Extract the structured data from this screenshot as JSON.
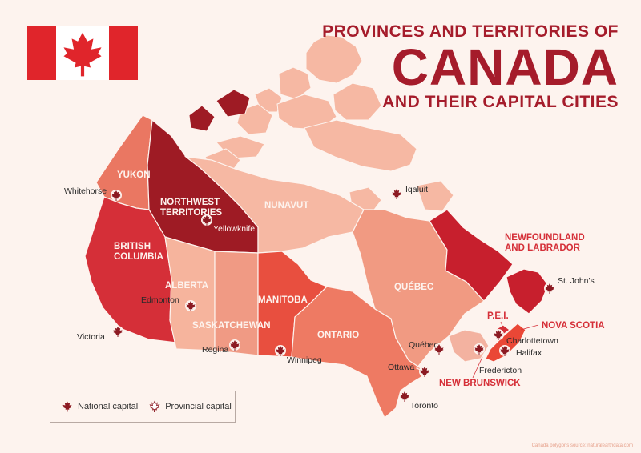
{
  "title": {
    "line1": "PROVINCES AND TERRITORIES OF",
    "line2": "CANADA",
    "line3": "AND THEIR CAPITAL CITIES"
  },
  "regions": [
    {
      "id": "yukon",
      "label_lines": [
        "YUKON"
      ],
      "color": "#ea7762"
    },
    {
      "id": "nwt",
      "label_lines": [
        "NORTHWEST",
        "TERRITORIES"
      ],
      "color": "#9e1b24"
    },
    {
      "id": "nunavut",
      "label_lines": [
        "NUNAVUT"
      ],
      "color": "#f6b8a3"
    },
    {
      "id": "bc",
      "label_lines": [
        "BRITISH",
        "COLUMBIA"
      ],
      "color": "#d52f38"
    },
    {
      "id": "alberta",
      "label_lines": [
        "ALBERTA"
      ],
      "color": "#f6b49d"
    },
    {
      "id": "saskatchewan",
      "label_lines": [
        "SASKATCHEWAN"
      ],
      "color": "#f09a84"
    },
    {
      "id": "manitoba",
      "label_lines": [
        "MANITOBA"
      ],
      "color": "#e84f3f"
    },
    {
      "id": "ontario",
      "label_lines": [
        "ONTARIO"
      ],
      "color": "#ee7a63"
    },
    {
      "id": "quebec",
      "label_lines": [
        "QUÉBEC"
      ],
      "color": "#f19a82"
    },
    {
      "id": "nl",
      "label_lines": [
        "NEWFOUNDLAND",
        "AND LABRADOR"
      ],
      "color": "#c71f2d"
    },
    {
      "id": "nb",
      "label_lines": [
        "NEW BRUNSWICK"
      ],
      "color": "#f3b2a0"
    },
    {
      "id": "ns",
      "label_lines": [
        "NOVA SCOTIA"
      ],
      "color": "#ea4736"
    },
    {
      "id": "pei",
      "label_lines": [
        "P.E.I."
      ],
      "color": "#d52f38"
    }
  ],
  "capitals": [
    {
      "name": "Whitehorse",
      "type": "provincial"
    },
    {
      "name": "Yellowknife",
      "type": "provincial"
    },
    {
      "name": "Iqaluit",
      "type": "provincial"
    },
    {
      "name": "Edmonton",
      "type": "provincial"
    },
    {
      "name": "Victoria",
      "type": "provincial"
    },
    {
      "name": "Regina",
      "type": "provincial"
    },
    {
      "name": "Winnipeg",
      "type": "provincial"
    },
    {
      "name": "Toronto",
      "type": "provincial"
    },
    {
      "name": "Ottawa",
      "type": "national"
    },
    {
      "name": "Québec",
      "type": "provincial"
    },
    {
      "name": "Fredericton",
      "type": "provincial"
    },
    {
      "name": "Charlottetown",
      "type": "provincial"
    },
    {
      "name": "Halifax",
      "type": "provincial"
    },
    {
      "name": "St. John's",
      "type": "provincial"
    }
  ],
  "legend": {
    "national_label": "National capital",
    "provincial_label": "Provincial capital"
  },
  "source": "Canada polygons source: naturalearthdata.com",
  "colors": {
    "accent": "#a51c2b",
    "background": "#fdf3ee",
    "flag_red": "#e0252b",
    "national_capital": "#8c1a22"
  }
}
